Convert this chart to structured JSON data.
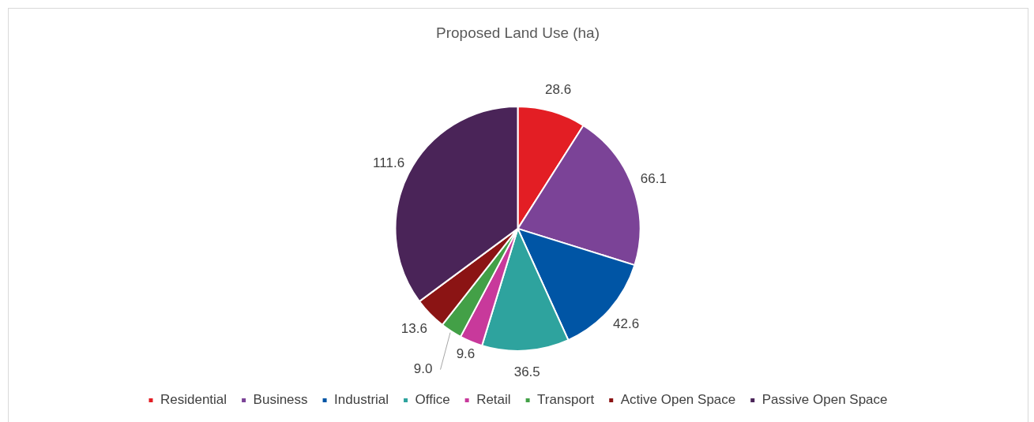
{
  "chart_data": {
    "type": "pie",
    "title": "Proposed Land Use (ha)",
    "categories": [
      "Residential",
      "Business",
      "Industrial",
      "Office",
      "Retail",
      "Transport",
      "Active Open Space",
      "Passive Open Space"
    ],
    "values": [
      28.6,
      66.1,
      42.6,
      36.5,
      9.6,
      9.0,
      13.6,
      111.6
    ],
    "colors": [
      "#e31e24",
      "#7b4397",
      "#0055a5",
      "#2ea39e",
      "#c8399b",
      "#43a047",
      "#8b1414",
      "#4a2458"
    ],
    "value_labels": [
      "28.6",
      "66.1",
      "42.6",
      "36.5",
      "9.6",
      "9.0",
      "13.6",
      "111.6"
    ],
    "legend": "bottom"
  }
}
